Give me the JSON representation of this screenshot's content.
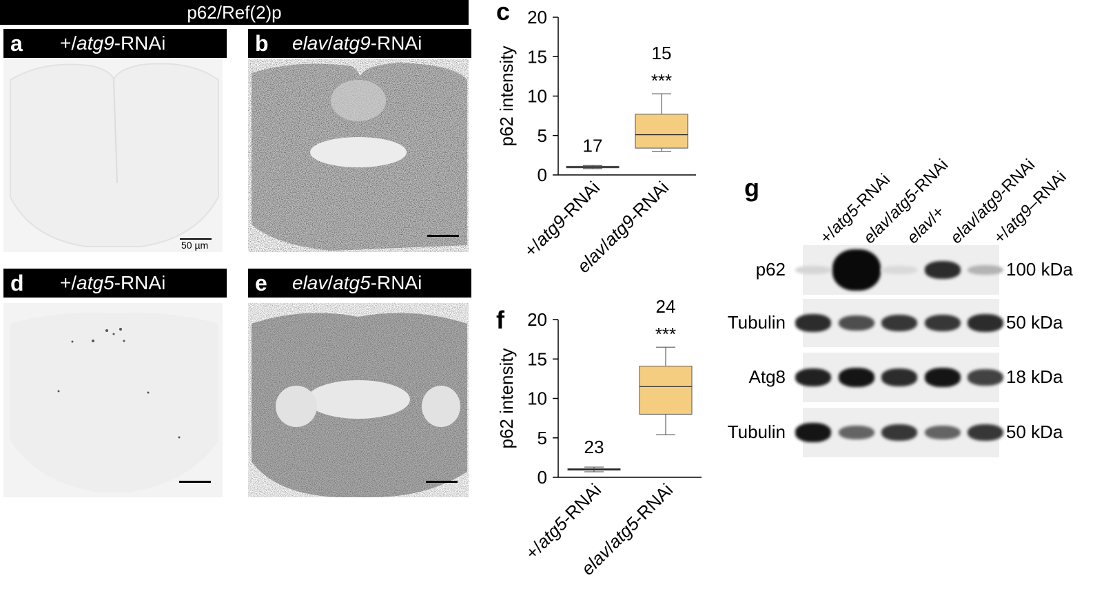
{
  "header": {
    "title": "p62/Ref(2)p"
  },
  "panels": {
    "a": {
      "letter": "a",
      "geno_prefix": "+/",
      "geno_gene": "atg9",
      "geno_suffix": "-RNAi",
      "scale_label": "50 µm"
    },
    "b": {
      "letter": "b",
      "geno_prefix": "elav",
      "geno_sep": "/",
      "geno_gene": "atg9",
      "geno_suffix": "-RNAi"
    },
    "d": {
      "letter": "d",
      "geno_prefix": "+/",
      "geno_gene": "atg5",
      "geno_suffix": "-RNAi"
    },
    "e": {
      "letter": "e",
      "geno_prefix": "elav",
      "geno_sep": "/",
      "geno_gene": "atg5",
      "geno_suffix": "-RNAi"
    }
  },
  "chart_data": [
    {
      "panel": "c",
      "type": "box",
      "ylabel": "p62 intensity",
      "ylim": [
        0,
        20
      ],
      "yticks": [
        0,
        5,
        10,
        15,
        20
      ],
      "categories": [
        "+/atg9-RNAi",
        "elav/atg9-RNAi"
      ],
      "n_labels": [
        "17",
        "15"
      ],
      "significance": [
        "",
        "***"
      ],
      "boxes": [
        {
          "whisker_low": 0.8,
          "q1": 0.9,
          "median": 1.0,
          "q3": 1.1,
          "whisker_high": 1.2,
          "color": "#2e5b3c"
        },
        {
          "whisker_low": 3.0,
          "q1": 3.4,
          "median": 5.1,
          "q3": 7.7,
          "whisker_high": 10.3,
          "color": "#f5cd80"
        }
      ]
    },
    {
      "panel": "f",
      "type": "box",
      "ylabel": "p62 intensity",
      "ylim": [
        0,
        20
      ],
      "yticks": [
        0,
        5,
        10,
        15,
        20
      ],
      "categories": [
        "+/atg5-RNAi",
        "elav/atg5-RNAi"
      ],
      "n_labels": [
        "23",
        "24"
      ],
      "significance": [
        "",
        "***"
      ],
      "boxes": [
        {
          "whisker_low": 0.7,
          "q1": 0.9,
          "median": 1.0,
          "q3": 1.1,
          "whisker_high": 1.3,
          "color": "#444444"
        },
        {
          "whisker_low": 5.4,
          "q1": 8.0,
          "median": 11.5,
          "q3": 14.1,
          "whisker_high": 16.5,
          "color": "#f5cd80"
        }
      ]
    }
  ],
  "western": {
    "letter": "g",
    "lanes": [
      {
        "prefix": "+/",
        "gene": "atg5",
        "suffix": "-RNAi"
      },
      {
        "prefix": "elav",
        "sep": "/",
        "gene": "atg5",
        "suffix": "-RNAi"
      },
      {
        "prefix": "elav",
        "sep": "/",
        "gene": "",
        "suffix": "+"
      },
      {
        "prefix": "elav",
        "sep": "/",
        "gene": "atg9",
        "suffix": "-RNAi"
      },
      {
        "prefix": "+/",
        "gene": "atg9",
        "suffix": "–RNAi"
      }
    ],
    "rows": [
      {
        "label": "p62",
        "kda": "100 kDa",
        "intensities": [
          0.1,
          1.0,
          0.08,
          0.85,
          0.25
        ]
      },
      {
        "label": "Tubulin",
        "kda": "50 kDa",
        "intensities": [
          0.85,
          0.7,
          0.8,
          0.8,
          0.85
        ]
      },
      {
        "label": "Atg8",
        "kda": "18 kDa",
        "intensities": [
          0.9,
          0.95,
          0.85,
          0.95,
          0.75
        ]
      },
      {
        "label": "Tubulin",
        "kda": "50 kDa",
        "intensities": [
          0.95,
          0.6,
          0.8,
          0.6,
          0.8
        ]
      }
    ]
  }
}
